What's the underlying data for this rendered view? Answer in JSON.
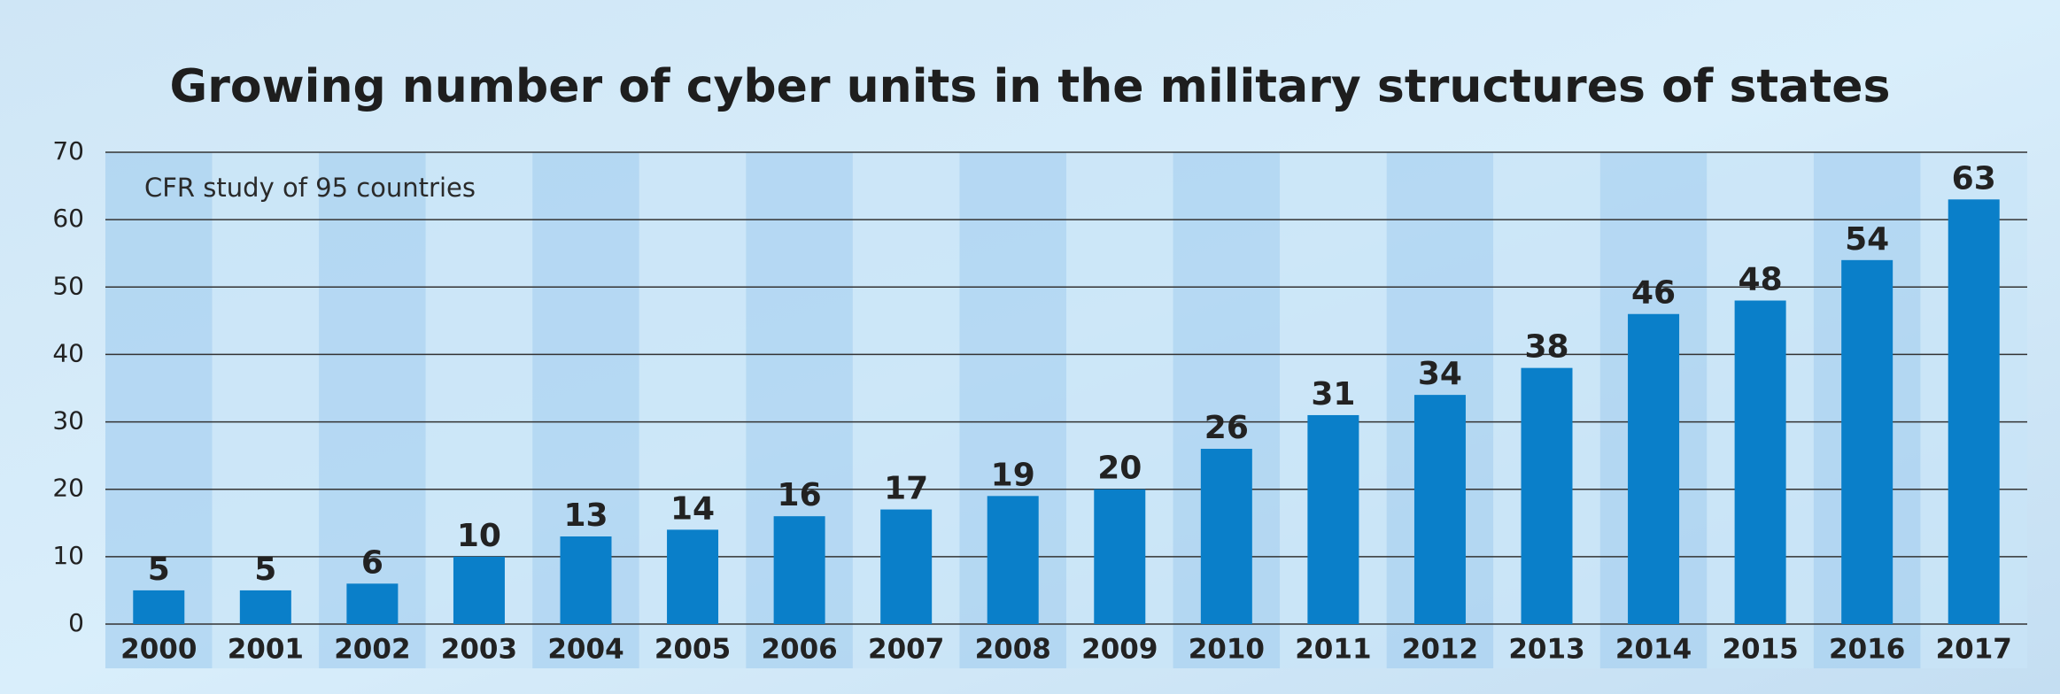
{
  "chart_data": {
    "type": "bar",
    "title": "Growing number of cyber units in the military structures of states",
    "annotation": "CFR study of 95 countries",
    "categories": [
      "2000",
      "2001",
      "2002",
      "2003",
      "2004",
      "2005",
      "2006",
      "2007",
      "2008",
      "2009",
      "2010",
      "2011",
      "2012",
      "2013",
      "2014",
      "2015",
      "2016",
      "2017"
    ],
    "values": [
      5,
      5,
      6,
      10,
      13,
      14,
      16,
      17,
      19,
      20,
      26,
      31,
      34,
      38,
      46,
      48,
      54,
      63
    ],
    "color": "#0a7fc9",
    "ylim": [
      0,
      70
    ],
    "yticks": [
      0,
      10,
      20,
      30,
      40,
      50,
      60,
      70
    ],
    "grid": true
  }
}
